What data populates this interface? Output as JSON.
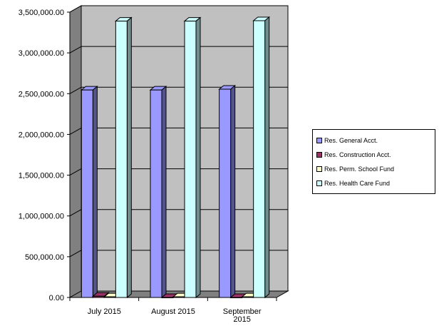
{
  "chart_data": {
    "type": "bar",
    "categories": [
      "July 2015",
      "August 2015",
      "September 2015"
    ],
    "category_lines": [
      [
        "July 2015"
      ],
      [
        "August 2015"
      ],
      [
        "September",
        "2015"
      ]
    ],
    "series": [
      {
        "name": "Res. General Acct.",
        "color": "#9999ff",
        "values": [
          2545000,
          2545000,
          2555000
        ]
      },
      {
        "name": "Res. Construction Acct.",
        "color": "#993366",
        "values": [
          15000,
          0,
          0
        ]
      },
      {
        "name": "Res. Perm. School Fund",
        "color": "#ffffcc",
        "values": [
          8000,
          8000,
          8000
        ]
      },
      {
        "name": "Res. Health Care Fund",
        "color": "#ccffff",
        "values": [
          3390000,
          3390000,
          3395000
        ]
      }
    ],
    "ylim": [
      0,
      3500000
    ],
    "yticks": [
      "0.00",
      "500,000.00",
      "1,000,000.00",
      "1,500,000.00",
      "2,000,000.00",
      "2,500,000.00",
      "3,000,000.00",
      "3,500,000.00"
    ],
    "ytick_values": [
      0,
      500000,
      1000000,
      1500000,
      2000000,
      2500000,
      3000000,
      3500000
    ],
    "grid": true,
    "legend_position": "right",
    "style": "3d-clustered-column",
    "plot_background": "#c0c0c0",
    "title": "",
    "xlabel": "",
    "ylabel": ""
  }
}
